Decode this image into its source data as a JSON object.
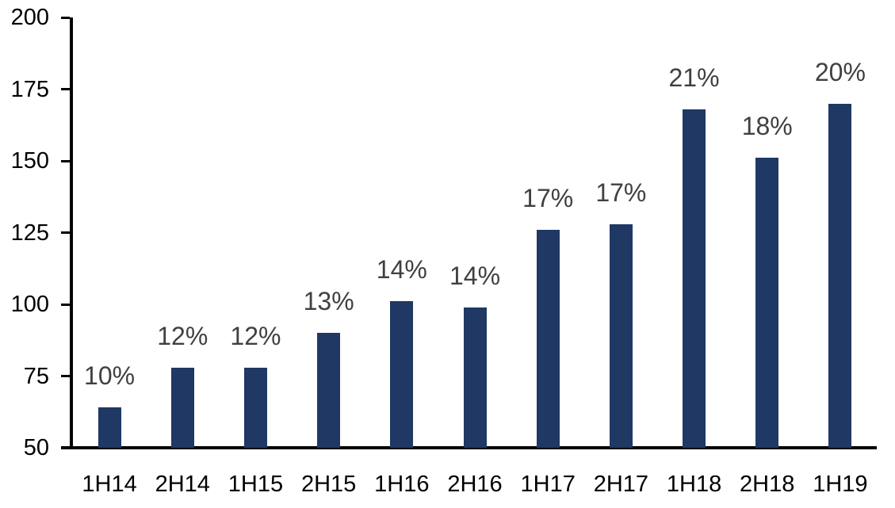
{
  "chart_data": {
    "type": "bar",
    "title": "",
    "categories": [
      "1H14",
      "2H14",
      "1H15",
      "2H15",
      "1H16",
      "2H16",
      "1H17",
      "2H17",
      "1H18",
      "2H18",
      "1H19"
    ],
    "values": [
      64,
      78,
      78,
      90,
      101,
      99,
      126,
      128,
      168,
      151,
      170
    ],
    "data_labels": [
      "10%",
      "12%",
      "12%",
      "13%",
      "14%",
      "14%",
      "17%",
      "17%",
      "21%",
      "18%",
      "20%"
    ],
    "xlabel": "",
    "ylabel": "",
    "ylim": [
      50,
      200
    ],
    "yticks": [
      50,
      75,
      100,
      125,
      150,
      175,
      200
    ],
    "grid": false,
    "legend": "none",
    "colors": {
      "bar": "#1F3864",
      "data_label": "#404040",
      "axis": "#000000",
      "tick_label": "#000000",
      "background": "#FFFFFF"
    }
  }
}
